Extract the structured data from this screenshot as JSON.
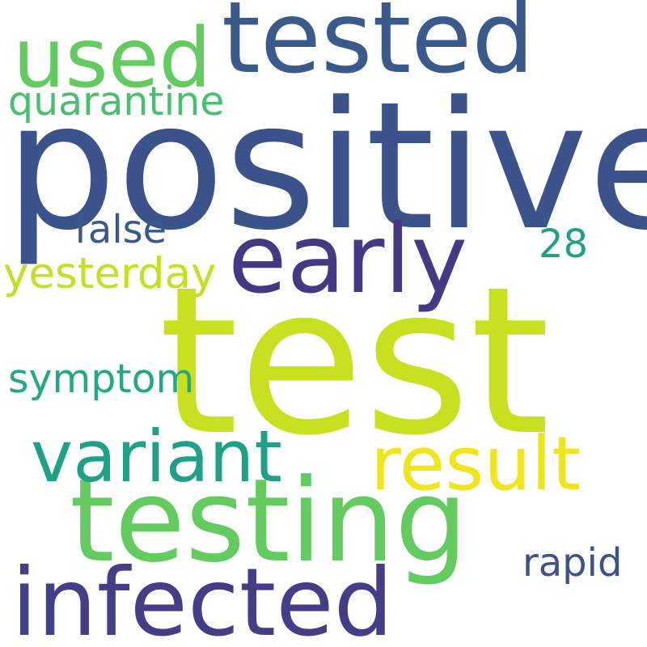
{
  "words": [
    {
      "id": "positive",
      "text": "positive",
      "color": "#3b528b"
    },
    {
      "id": "test",
      "text": "test",
      "color": "#c8e020"
    },
    {
      "id": "testing",
      "text": "testing",
      "color": "#63cb5f"
    },
    {
      "id": "tested",
      "text": "tested",
      "color": "#3a5a8c"
    },
    {
      "id": "early",
      "text": "early",
      "color": "#443983"
    },
    {
      "id": "infected",
      "text": "infected",
      "color": "#433e85"
    },
    {
      "id": "used",
      "text": "used",
      "color": "#63cb5f"
    },
    {
      "id": "variant",
      "text": "variant",
      "color": "#1fa187"
    },
    {
      "id": "result",
      "text": "result",
      "color": "#f0e51c"
    },
    {
      "id": "yesterday",
      "text": "yesterday",
      "color": "#c5df23"
    },
    {
      "id": "quarantine",
      "text": "quarantine",
      "color": "#48c16e"
    },
    {
      "id": "symptom",
      "text": "symptom",
      "color": "#23a884"
    },
    {
      "id": "false",
      "text": "false",
      "color": "#38598c"
    },
    {
      "id": "rapid",
      "text": "rapid",
      "color": "#3b528b"
    },
    {
      "id": "28",
      "text": "28",
      "color": "#1fa187"
    }
  ]
}
